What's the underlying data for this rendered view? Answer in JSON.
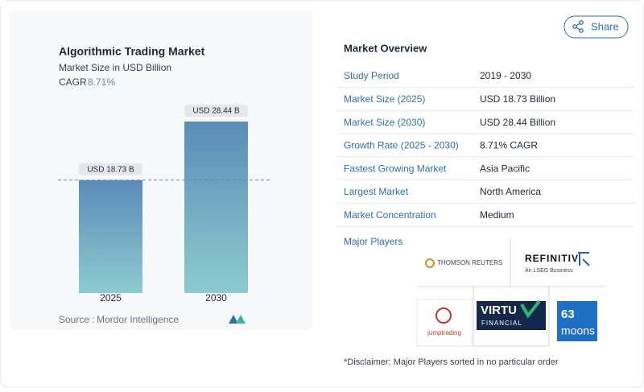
{
  "chart_data": {
    "type": "bar",
    "title": "Algorithmic Trading Market",
    "subtitle": "Market Size in USD Billion",
    "cagr_label": "CAGR",
    "cagr": "8.71%",
    "categories": [
      "2025",
      "2030"
    ],
    "values": [
      18.73,
      28.44
    ],
    "value_labels": [
      "USD 18.73 B",
      "USD 28.44 B"
    ],
    "source_label": "Source :",
    "source": "Mordor Intelligence"
  },
  "share": "Share",
  "overview": {
    "title": "Market Overview",
    "rows": [
      [
        "Study Period",
        "2019 - 2030"
      ],
      [
        "Market Size (2025)",
        "USD 18.73 Billion"
      ],
      [
        "Market Size (2030)",
        "USD 28.44 Billion"
      ],
      [
        "Growth Rate (2025 - 2030)",
        "8.71% CAGR"
      ],
      [
        "Fastest Growing Market",
        "Asia Pacific"
      ],
      [
        "Largest Market",
        "North America"
      ],
      [
        "Market Concentration",
        "Medium"
      ]
    ]
  },
  "players": {
    "title": "Major Players",
    "thomson": "THOMSON REUTERS",
    "refinitiv": "REFINITIV",
    "refinitiv_sub": "An LSEG Business",
    "jump": "jumptrading",
    "virtu": "VIRTU",
    "virtu_sub": "FINANCIAL",
    "moons_num": "63",
    "moons": "moons"
  },
  "disclaimer": "*Disclaimer: Major Players sorted in no particular order"
}
